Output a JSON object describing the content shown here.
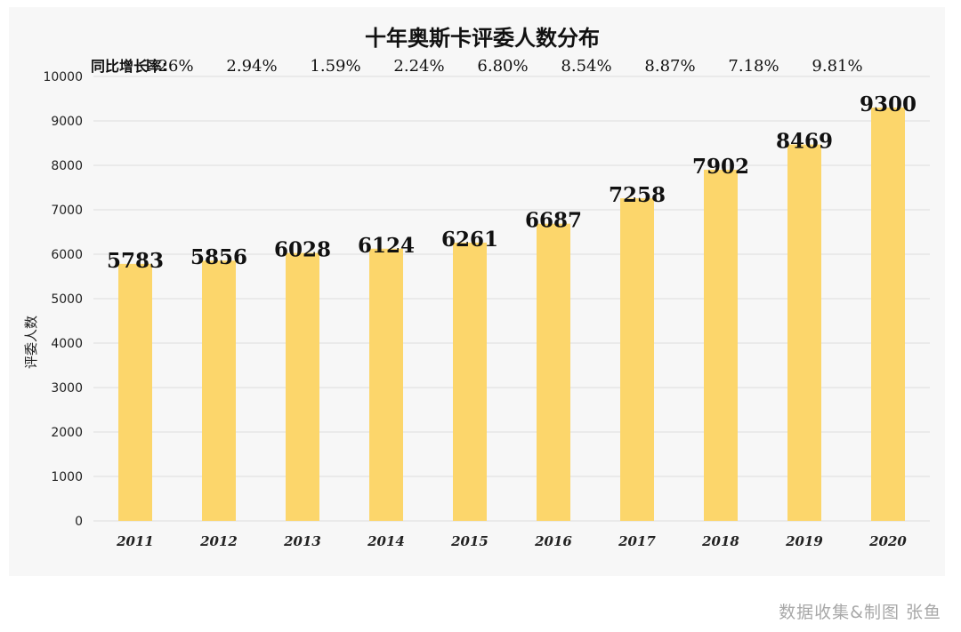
{
  "chart_data": {
    "type": "bar",
    "title": "十年奥斯卡评委人数分布",
    "ylabel": "评委人数",
    "xlabel": "",
    "ylim": [
      0,
      10000
    ],
    "yticks": [
      0,
      1000,
      2000,
      3000,
      4000,
      5000,
      6000,
      7000,
      8000,
      9000,
      10000
    ],
    "categories": [
      "2011",
      "2012",
      "2013",
      "2014",
      "2015",
      "2016",
      "2017",
      "2018",
      "2019",
      "2020"
    ],
    "values": [
      5783,
      5856,
      6028,
      6124,
      6261,
      6687,
      7258,
      7902,
      8469,
      9300
    ],
    "value_labels": [
      "5783",
      "5856",
      "6028",
      "6124",
      "6261",
      "6687",
      "7258",
      "7902",
      "8469",
      "9300"
    ],
    "growth_label": "同比增长率:",
    "growth_rates": [
      "1.26%",
      "2.94%",
      "1.59%",
      "2.24%",
      "6.80%",
      "8.54%",
      "8.87%",
      "7.18%",
      "9.81%"
    ],
    "bar_color": "#fcd66b",
    "grid": true
  },
  "credit": "数据收集&制图 张鱼"
}
